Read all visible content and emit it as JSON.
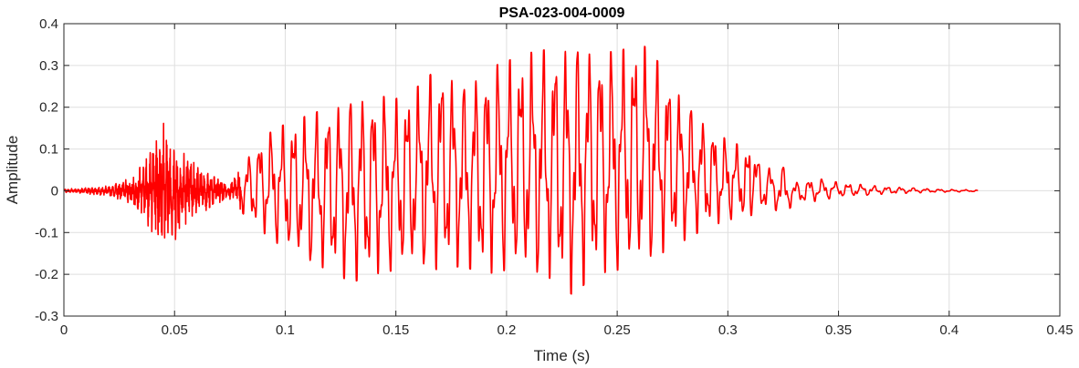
{
  "chart_data": {
    "type": "line",
    "title": "PSA-023-004-0009",
    "xlabel": "Time (s)",
    "ylabel": "Amplitude",
    "xlim": [
      0,
      0.45
    ],
    "ylim": [
      -0.3,
      0.4
    ],
    "xticks": [
      0,
      0.05,
      0.1,
      0.15,
      0.2,
      0.25,
      0.3,
      0.35,
      0.4,
      0.45
    ],
    "xtick_labels": [
      "0",
      "0.05",
      "0.1",
      "0.15",
      "0.2",
      "0.25",
      "0.3",
      "0.35",
      "0.4",
      "0.45"
    ],
    "yticks": [
      -0.3,
      -0.2,
      -0.1,
      0,
      0.1,
      0.2,
      0.3,
      0.4
    ],
    "ytick_labels": [
      "-0.3",
      "-0.2",
      "-0.1",
      "0",
      "0.1",
      "0.2",
      "0.3",
      "0.4"
    ],
    "grid": true,
    "series": [
      {
        "color": "#ff0000",
        "time_end": 0.413,
        "upper_envelope": [
          [
            0,
            0.004
          ],
          [
            0.01,
            0.008
          ],
          [
            0.02,
            0.012
          ],
          [
            0.03,
            0.03
          ],
          [
            0.035,
            0.06
          ],
          [
            0.04,
            0.12
          ],
          [
            0.044,
            0.17
          ],
          [
            0.05,
            0.12
          ],
          [
            0.055,
            0.09
          ],
          [
            0.06,
            0.07
          ],
          [
            0.065,
            0.05
          ],
          [
            0.07,
            0.03
          ],
          [
            0.075,
            0.02
          ],
          [
            0.08,
            0.06
          ],
          [
            0.09,
            0.13
          ],
          [
            0.1,
            0.16
          ],
          [
            0.11,
            0.18
          ],
          [
            0.12,
            0.2
          ],
          [
            0.13,
            0.22
          ],
          [
            0.14,
            0.23
          ],
          [
            0.15,
            0.22
          ],
          [
            0.16,
            0.25
          ],
          [
            0.17,
            0.3
          ],
          [
            0.18,
            0.25
          ],
          [
            0.19,
            0.29
          ],
          [
            0.2,
            0.31
          ],
          [
            0.21,
            0.33
          ],
          [
            0.22,
            0.34
          ],
          [
            0.23,
            0.35
          ],
          [
            0.24,
            0.34
          ],
          [
            0.25,
            0.33
          ],
          [
            0.26,
            0.36
          ],
          [
            0.27,
            0.3
          ],
          [
            0.28,
            0.22
          ],
          [
            0.29,
            0.16
          ],
          [
            0.3,
            0.12
          ],
          [
            0.31,
            0.1
          ],
          [
            0.32,
            0.05
          ],
          [
            0.325,
            0.06
          ],
          [
            0.33,
            0.02
          ],
          [
            0.34,
            0.03
          ],
          [
            0.35,
            0.02
          ],
          [
            0.36,
            0.015
          ],
          [
            0.37,
            0.01
          ],
          [
            0.38,
            0.008
          ],
          [
            0.39,
            0.005
          ],
          [
            0.4,
            0.003
          ],
          [
            0.413,
            0.002
          ]
        ],
        "lower_envelope": [
          [
            0,
            -0.004
          ],
          [
            0.01,
            -0.008
          ],
          [
            0.02,
            -0.012
          ],
          [
            0.03,
            -0.03
          ],
          [
            0.035,
            -0.06
          ],
          [
            0.04,
            -0.1
          ],
          [
            0.044,
            -0.15
          ],
          [
            0.05,
            -0.12
          ],
          [
            0.055,
            -0.08
          ],
          [
            0.06,
            -0.06
          ],
          [
            0.065,
            -0.05
          ],
          [
            0.07,
            -0.03
          ],
          [
            0.075,
            -0.02
          ],
          [
            0.08,
            -0.05
          ],
          [
            0.09,
            -0.1
          ],
          [
            0.1,
            -0.14
          ],
          [
            0.11,
            -0.17
          ],
          [
            0.12,
            -0.19
          ],
          [
            0.13,
            -0.22
          ],
          [
            0.14,
            -0.2
          ],
          [
            0.15,
            -0.19
          ],
          [
            0.16,
            -0.18
          ],
          [
            0.17,
            -0.19
          ],
          [
            0.18,
            -0.18
          ],
          [
            0.19,
            -0.2
          ],
          [
            0.2,
            -0.19
          ],
          [
            0.21,
            -0.2
          ],
          [
            0.22,
            -0.21
          ],
          [
            0.23,
            -0.25
          ],
          [
            0.24,
            -0.2
          ],
          [
            0.25,
            -0.19
          ],
          [
            0.26,
            -0.18
          ],
          [
            0.27,
            -0.15
          ],
          [
            0.28,
            -0.12
          ],
          [
            0.29,
            -0.09
          ],
          [
            0.3,
            -0.07
          ],
          [
            0.31,
            -0.06
          ],
          [
            0.32,
            -0.04
          ],
          [
            0.325,
            -0.06
          ],
          [
            0.33,
            -0.03
          ],
          [
            0.34,
            -0.025
          ],
          [
            0.35,
            -0.015
          ],
          [
            0.36,
            -0.012
          ],
          [
            0.37,
            -0.008
          ],
          [
            0.38,
            -0.006
          ],
          [
            0.39,
            -0.004
          ],
          [
            0.4,
            -0.003
          ],
          [
            0.413,
            -0.002
          ]
        ]
      }
    ]
  }
}
